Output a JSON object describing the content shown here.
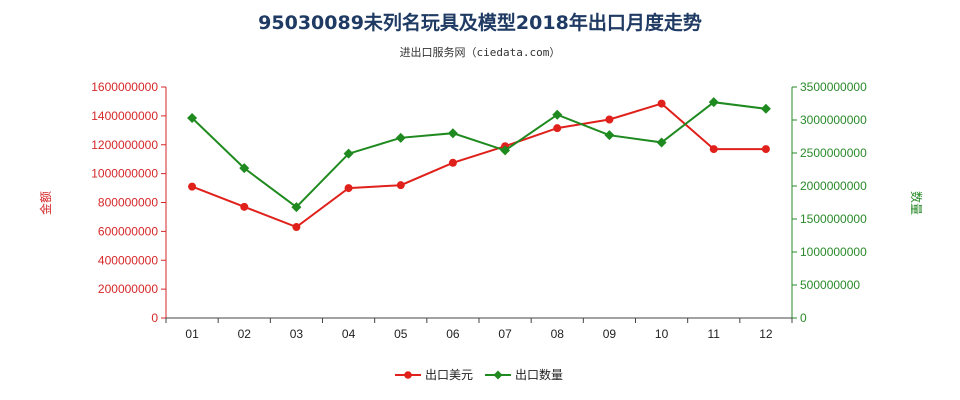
{
  "chart_data": {
    "type": "line",
    "title": "95030089未列名玩具及模型2018年出口月度走势",
    "subtitle": "进出口服务网（ciedata.com）",
    "categories": [
      "01",
      "02",
      "03",
      "04",
      "05",
      "06",
      "07",
      "08",
      "09",
      "10",
      "11",
      "12"
    ],
    "y_left": {
      "label": "金额",
      "ylim": [
        0,
        1600000000
      ],
      "ticks": [
        "0",
        "200000000",
        "400000000",
        "600000000",
        "800000000",
        "1000000000",
        "1200000000",
        "1400000000",
        "1600000000"
      ],
      "tick_values": [
        0,
        200000000,
        400000000,
        600000000,
        800000000,
        1000000000,
        1200000000,
        1400000000,
        1600000000
      ],
      "color": "#d62728"
    },
    "y_right": {
      "label": "数量",
      "ylim": [
        0,
        3500000000
      ],
      "ticks": [
        "0",
        "500000000",
        "1000000000",
        "1500000000",
        "2000000000",
        "2500000000",
        "3000000000",
        "3500000000"
      ],
      "tick_values": [
        0,
        500000000,
        1000000000,
        1500000000,
        2000000000,
        2500000000,
        3000000000,
        3500000000
      ],
      "color": "#2a8a2a"
    },
    "series": [
      {
        "name": "出口美元",
        "axis": "left",
        "color": "#e0211b",
        "marker": "circle",
        "values": [
          910000000,
          770000000,
          630000000,
          900000000,
          920000000,
          1075000000,
          1190000000,
          1315000000,
          1375000000,
          1485000000,
          1170000000,
          1170000000
        ]
      },
      {
        "name": "出口数量",
        "axis": "right",
        "color": "#1f8a1f",
        "marker": "diamond",
        "values": [
          3030000000,
          2270000000,
          1680000000,
          2490000000,
          2730000000,
          2800000000,
          2540000000,
          3080000000,
          2770000000,
          2660000000,
          3270000000,
          3170000000
        ]
      }
    ],
    "grid": false,
    "legend_position": "bottom"
  }
}
